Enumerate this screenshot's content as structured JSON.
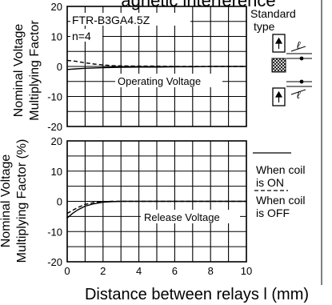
{
  "header_fragment": "agnetic interference",
  "chart_data": [
    {
      "type": "line",
      "title": "FTR-B3GA4.5Z",
      "subtitle": "n=4",
      "ylabel": [
        "Nominal Voltage",
        "Multiplying Factor"
      ],
      "annotation": "Operating Voltage",
      "xlim": [
        0,
        10
      ],
      "ylim": [
        -20,
        20
      ],
      "yticks": [
        20,
        10,
        0,
        -10,
        -20
      ],
      "xticks": [],
      "grid": true,
      "series": [
        {
          "style": "solid",
          "x": [
            0,
            0.5,
            1,
            1.5,
            2,
            3,
            4,
            5,
            6,
            7,
            8,
            9,
            10
          ],
          "y": [
            -1.0,
            -0.8,
            -0.6,
            -0.5,
            -0.4,
            -0.3,
            -0.2,
            -0.2,
            -0.1,
            -0.1,
            0,
            0,
            0
          ]
        },
        {
          "style": "dashed",
          "x": [
            0,
            0.5,
            1,
            1.5,
            2,
            2.5,
            3,
            4,
            5,
            6,
            7,
            8,
            9,
            10
          ],
          "y": [
            2.0,
            1.7,
            1.2,
            0.8,
            0.5,
            0.3,
            0.2,
            0.1,
            0.1,
            0,
            0,
            0,
            0,
            0
          ]
        }
      ]
    },
    {
      "type": "line",
      "ylabel": [
        "Nominal Voltage",
        "Multiplying Factor (%)"
      ],
      "xlabel": "Distance between relays l (mm)",
      "annotation": "Release Voltage",
      "xlim": [
        0,
        10
      ],
      "ylim": [
        -20,
        20
      ],
      "yticks": [
        20,
        10,
        0,
        -10,
        -20
      ],
      "xticks": [
        0,
        2,
        4,
        6,
        8,
        10
      ],
      "grid": true,
      "series": [
        {
          "style": "solid",
          "x": [
            0,
            0.3,
            0.6,
            1,
            1.5,
            2,
            2.5,
            3,
            4,
            5,
            6,
            7,
            8,
            9,
            10
          ],
          "y": [
            -5.5,
            -4.0,
            -2.8,
            -1.6,
            -0.8,
            -0.3,
            -0.1,
            0,
            0,
            0,
            0,
            0,
            0,
            0,
            0
          ]
        },
        {
          "style": "dashed",
          "x": [
            0,
            0.3,
            0.6,
            1,
            1.5,
            2,
            2.5,
            3,
            4,
            5,
            6,
            7,
            8,
            9,
            10
          ],
          "y": [
            -4.0,
            -3.0,
            -2.0,
            -1.0,
            -0.4,
            -0.1,
            0,
            0,
            0,
            0,
            0,
            0,
            0,
            0,
            0
          ]
        }
      ]
    }
  ],
  "legend": {
    "standard_type": [
      "Standard",
      "type"
    ],
    "coil_on": [
      "When coil",
      "is ON"
    ],
    "coil_off": [
      "When coil",
      "is OFF"
    ],
    "l_symbol": "ℓ"
  }
}
